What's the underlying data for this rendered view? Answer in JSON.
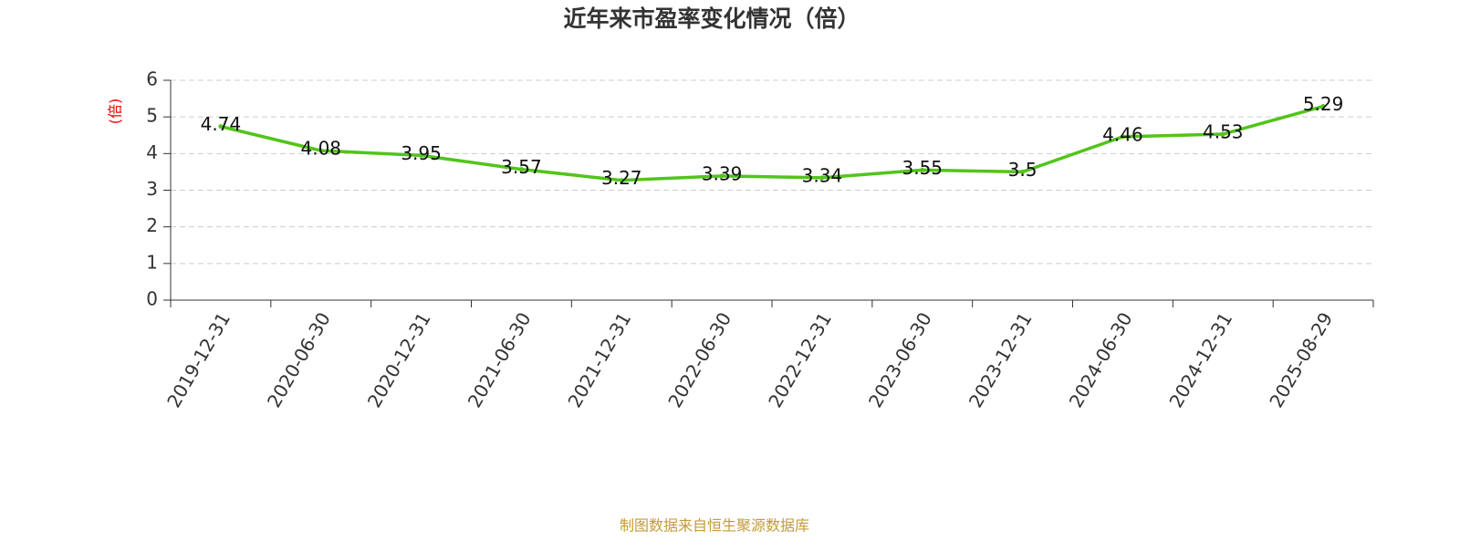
{
  "chart_data": {
    "type": "line",
    "title": "近年来市盈率变化情况（倍）",
    "y_label": "(倍)",
    "source": "制图数据来自恒生聚源数据库",
    "categories": [
      "2019-12-31",
      "2020-06-30",
      "2020-12-31",
      "2021-06-30",
      "2021-12-31",
      "2022-06-30",
      "2022-12-31",
      "2023-06-30",
      "2023-12-31",
      "2024-06-30",
      "2024-12-31",
      "2025-08-29"
    ],
    "series": [
      {
        "name": "市盈率",
        "color": "#52c41a",
        "values": [
          4.74,
          4.08,
          3.95,
          3.57,
          3.27,
          3.39,
          3.34,
          3.55,
          3.5,
          4.46,
          4.53,
          5.29
        ]
      }
    ],
    "ylim": [
      0,
      6
    ],
    "yticks": [
      0,
      1,
      2,
      3,
      4,
      5,
      6
    ],
    "grid": true
  }
}
